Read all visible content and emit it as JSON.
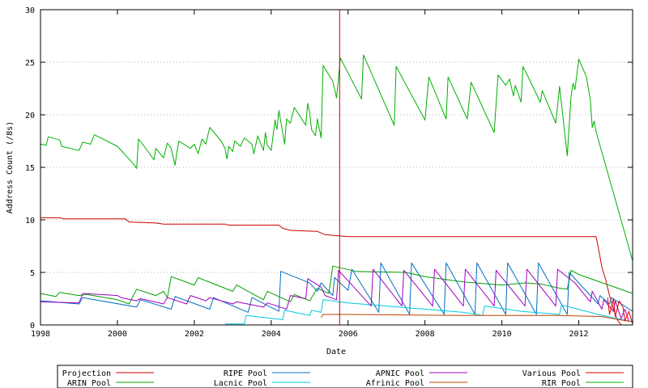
{
  "chart_data": {
    "type": "line",
    "xlabel": "Date",
    "ylabel": "Address Count (/8s)",
    "xlim": [
      1998,
      2013.4
    ],
    "ylim": [
      0,
      30
    ],
    "x_ticks": [
      "1998",
      "2000",
      "2002",
      "2004",
      "2006",
      "2008",
      "2010",
      "2012"
    ],
    "y_ticks": [
      "0",
      "5",
      "10",
      "15",
      "20",
      "25",
      "30"
    ],
    "grid": true,
    "legend_position": "bottom",
    "projection_marker_x": 2005.78,
    "series": [
      {
        "name": "Projection",
        "color": "#cc0000",
        "points": [
          [
            1998,
            10.2
          ],
          [
            1998.5,
            10.2
          ],
          [
            1998.6,
            10.1
          ],
          [
            2000.2,
            10.1
          ],
          [
            2000.3,
            9.8
          ],
          [
            2001.0,
            9.7
          ],
          [
            2001.2,
            9.6
          ],
          [
            2002.8,
            9.6
          ],
          [
            2002.9,
            9.5
          ],
          [
            2004.2,
            9.5
          ],
          [
            2004.3,
            9.2
          ],
          [
            2004.5,
            9.0
          ],
          [
            2005.2,
            8.9
          ],
          [
            2005.4,
            8.6
          ],
          [
            2005.7,
            8.5
          ],
          [
            2006.0,
            8.4
          ],
          [
            2012.45,
            8.4
          ],
          [
            2012.5,
            7.5
          ],
          [
            2012.55,
            6.5
          ],
          [
            2012.6,
            5.5
          ],
          [
            2012.7,
            4.3
          ],
          [
            2012.8,
            2.8
          ],
          [
            2012.9,
            1.5
          ],
          [
            2013.0,
            0.5
          ],
          [
            2013.1,
            0
          ]
        ]
      },
      {
        "name": "ARIN Pool",
        "color": "#00a000",
        "points": [
          [
            1998,
            3.0
          ],
          [
            1998.4,
            2.7
          ],
          [
            1998.5,
            3.1
          ],
          [
            1999.0,
            2.8
          ],
          [
            1999.2,
            2.9
          ],
          [
            2000.0,
            2.4
          ],
          [
            2000.3,
            2.0
          ],
          [
            2000.5,
            3.4
          ],
          [
            2001.0,
            2.8
          ],
          [
            2001.2,
            3.2
          ],
          [
            2001.3,
            2.6
          ],
          [
            2001.4,
            4.6
          ],
          [
            2002.0,
            3.8
          ],
          [
            2002.1,
            4.5
          ],
          [
            2003.0,
            3.2
          ],
          [
            2003.1,
            3.8
          ],
          [
            2003.8,
            2.4
          ],
          [
            2003.9,
            3.2
          ],
          [
            2004.5,
            2.2
          ],
          [
            2004.6,
            2.9
          ],
          [
            2005.0,
            2.3
          ],
          [
            2005.2,
            3.5
          ],
          [
            2005.5,
            3.0
          ],
          [
            2005.6,
            5.6
          ],
          [
            2006.2,
            5.1
          ],
          [
            2007.5,
            5.0
          ],
          [
            2008.0,
            4.6
          ],
          [
            2009.0,
            4.1
          ],
          [
            2010.0,
            3.8
          ],
          [
            2010.6,
            4.0
          ],
          [
            2011.0,
            3.9
          ],
          [
            2011.5,
            3.5
          ],
          [
            2011.7,
            3.4
          ],
          [
            2011.8,
            5.2
          ],
          [
            2012.0,
            4.8
          ],
          [
            2013.4,
            3.0
          ]
        ]
      },
      {
        "name": "RIPE Pool",
        "color": "#0070c0",
        "points": [
          [
            1998,
            2.3
          ],
          [
            1999.0,
            2.0
          ],
          [
            1999.1,
            2.6
          ],
          [
            2000.5,
            1.7
          ],
          [
            2000.6,
            2.4
          ],
          [
            2001.4,
            1.5
          ],
          [
            2001.5,
            2.7
          ],
          [
            2002.4,
            1.5
          ],
          [
            2002.5,
            2.6
          ],
          [
            2003.4,
            1.2
          ],
          [
            2003.5,
            2.6
          ],
          [
            2004.2,
            1.3
          ],
          [
            2004.25,
            5.1
          ],
          [
            2005.0,
            4.0
          ],
          [
            2005.2,
            3.2
          ],
          [
            2005.3,
            4.0
          ],
          [
            2005.6,
            2.8
          ],
          [
            2005.65,
            4.5
          ],
          [
            2006.0,
            3.3
          ],
          [
            2006.1,
            5.3
          ],
          [
            2006.8,
            1.2
          ],
          [
            2006.85,
            5.9
          ],
          [
            2007.6,
            1.0
          ],
          [
            2007.65,
            5.9
          ],
          [
            2008.5,
            1.0
          ],
          [
            2008.55,
            5.9
          ],
          [
            2009.3,
            1.0
          ],
          [
            2009.35,
            5.9
          ],
          [
            2010.1,
            1.0
          ],
          [
            2010.15,
            5.9
          ],
          [
            2010.9,
            1.0
          ],
          [
            2010.95,
            5.9
          ],
          [
            2011.7,
            1.0
          ],
          [
            2011.75,
            5.0
          ],
          [
            2012.5,
            2.0
          ],
          [
            2012.55,
            2.8
          ],
          [
            2012.8,
            2.0
          ],
          [
            2012.85,
            2.6
          ],
          [
            2013.4,
            1.3
          ]
        ]
      },
      {
        "name": "Lacnic Pool",
        "color": "#00c8e0",
        "points": [
          [
            2002.8,
            0.1
          ],
          [
            2003.3,
            0.1
          ],
          [
            2003.35,
            0.9
          ],
          [
            2004.3,
            0.5
          ],
          [
            2004.35,
            1.4
          ],
          [
            2005.0,
            0.9
          ],
          [
            2005.05,
            1.4
          ],
          [
            2005.3,
            1.2
          ],
          [
            2005.35,
            2.4
          ],
          [
            2006.0,
            2.1
          ],
          [
            2007.0,
            1.8
          ],
          [
            2008.0,
            1.5
          ],
          [
            2009.0,
            1.2
          ],
          [
            2009.5,
            0.9
          ],
          [
            2009.55,
            1.8
          ],
          [
            2010.5,
            1.3
          ],
          [
            2011.5,
            1.0
          ],
          [
            2011.55,
            1.9
          ],
          [
            2012.3,
            1.2
          ],
          [
            2012.5,
            1.0
          ],
          [
            2013.4,
            0.3
          ]
        ]
      },
      {
        "name": "APNIC Pool",
        "color": "#a000c0",
        "points": [
          [
            1998,
            2.2
          ],
          [
            1999.0,
            2.1
          ],
          [
            1999.1,
            3.0
          ],
          [
            2000.0,
            2.8
          ],
          [
            2000.1,
            2.6
          ],
          [
            2000.5,
            2.3
          ],
          [
            2000.6,
            2.5
          ],
          [
            2001.2,
            2.0
          ],
          [
            2001.3,
            2.6
          ],
          [
            2001.8,
            2.0
          ],
          [
            2001.9,
            2.8
          ],
          [
            2002.3,
            2.3
          ],
          [
            2002.4,
            2.6
          ],
          [
            2003.0,
            2.0
          ],
          [
            2003.1,
            2.2
          ],
          [
            2003.8,
            1.7
          ],
          [
            2003.9,
            2.1
          ],
          [
            2004.4,
            1.5
          ],
          [
            2004.5,
            2.8
          ],
          [
            2004.9,
            2.5
          ],
          [
            2004.95,
            4.4
          ],
          [
            2005.3,
            3.6
          ],
          [
            2005.4,
            2.8
          ],
          [
            2005.7,
            2.4
          ],
          [
            2005.75,
            5.2
          ],
          [
            2006.6,
            1.8
          ],
          [
            2006.65,
            5.3
          ],
          [
            2007.4,
            1.8
          ],
          [
            2007.45,
            5.2
          ],
          [
            2008.2,
            1.8
          ],
          [
            2008.25,
            5.3
          ],
          [
            2009.0,
            1.8
          ],
          [
            2009.05,
            5.3
          ],
          [
            2009.8,
            1.8
          ],
          [
            2009.85,
            5.2
          ],
          [
            2010.6,
            1.8
          ],
          [
            2010.65,
            5.3
          ],
          [
            2011.4,
            1.8
          ],
          [
            2011.45,
            5.3
          ],
          [
            2011.9,
            4.0
          ],
          [
            2012.3,
            2.2
          ],
          [
            2012.35,
            3.2
          ],
          [
            2012.6,
            1.5
          ],
          [
            2012.65,
            2.4
          ],
          [
            2012.9,
            1.3
          ],
          [
            2012.95,
            2.3
          ],
          [
            2013.1,
            0.6
          ],
          [
            2013.2,
            1.5
          ],
          [
            2013.3,
            0.4
          ]
        ]
      },
      {
        "name": "Afrinic Pool",
        "color": "#c04000",
        "points": [
          [
            2005.3,
            0.7
          ],
          [
            2005.35,
            1.0
          ],
          [
            2006.0,
            1.0
          ],
          [
            2009.0,
            0.9
          ],
          [
            2011.5,
            0.9
          ],
          [
            2012.6,
            0.8
          ],
          [
            2012.9,
            0.6
          ],
          [
            2013.4,
            0.3
          ]
        ]
      },
      {
        "name": "Various Pool",
        "color": "#e00000",
        "points": [
          [
            2012.75,
            2.6
          ],
          [
            2012.8,
            1.0
          ],
          [
            2012.9,
            2.5
          ],
          [
            2012.95,
            0.8
          ],
          [
            2013.05,
            2.3
          ],
          [
            2013.15,
            1.7
          ],
          [
            2013.2,
            0.4
          ],
          [
            2013.3,
            1.3
          ],
          [
            2013.4,
            0.1
          ]
        ]
      },
      {
        "name": "RIR Pool",
        "color": "#00b000",
        "points": [
          [
            1998,
            17.2
          ],
          [
            1998.15,
            17.1
          ],
          [
            1998.2,
            17.9
          ],
          [
            1998.5,
            17.6
          ],
          [
            1998.55,
            17.0
          ],
          [
            1999.0,
            16.6
          ],
          [
            1999.1,
            17.4
          ],
          [
            1999.3,
            17.2
          ],
          [
            1999.4,
            18.1
          ],
          [
            2000.0,
            17.0
          ],
          [
            2000.4,
            15.4
          ],
          [
            2000.5,
            14.9
          ],
          [
            2000.55,
            17.7
          ],
          [
            2000.8,
            16.5
          ],
          [
            2000.95,
            15.7
          ],
          [
            2001.0,
            16.8
          ],
          [
            2001.2,
            15.9
          ],
          [
            2001.3,
            17.3
          ],
          [
            2001.4,
            16.8
          ],
          [
            2001.5,
            15.2
          ],
          [
            2001.55,
            16.5
          ],
          [
            2001.6,
            17.5
          ],
          [
            2001.9,
            16.8
          ],
          [
            2002.0,
            17.2
          ],
          [
            2002.1,
            16.3
          ],
          [
            2002.2,
            17.7
          ],
          [
            2002.3,
            17.2
          ],
          [
            2002.4,
            18.8
          ],
          [
            2002.7,
            17.5
          ],
          [
            2002.8,
            16.8
          ],
          [
            2002.85,
            15.8
          ],
          [
            2002.9,
            17.0
          ],
          [
            2003.0,
            16.5
          ],
          [
            2003.05,
            17.5
          ],
          [
            2003.2,
            17.0
          ],
          [
            2003.3,
            17.8
          ],
          [
            2003.5,
            17.2
          ],
          [
            2003.55,
            16.3
          ],
          [
            2003.65,
            18.0
          ],
          [
            2003.8,
            16.6
          ],
          [
            2003.85,
            18.3
          ],
          [
            2003.9,
            17.1
          ],
          [
            2004.0,
            16.6
          ],
          [
            2004.1,
            19.5
          ],
          [
            2004.15,
            18.6
          ],
          [
            2004.2,
            20.4
          ],
          [
            2004.35,
            17.2
          ],
          [
            2004.4,
            19.6
          ],
          [
            2004.5,
            19.2
          ],
          [
            2004.6,
            20.7
          ],
          [
            2004.9,
            19.0
          ],
          [
            2004.95,
            21.1
          ],
          [
            2005.0,
            20.2
          ],
          [
            2005.05,
            18.6
          ],
          [
            2005.15,
            18.0
          ],
          [
            2005.2,
            19.6
          ],
          [
            2005.3,
            17.8
          ],
          [
            2005.35,
            24.7
          ],
          [
            2005.6,
            23.2
          ],
          [
            2005.7,
            21.6
          ],
          [
            2005.8,
            25.4
          ],
          [
            2006.35,
            21.5
          ],
          [
            2006.4,
            25.7
          ],
          [
            2007.2,
            19.0
          ],
          [
            2007.25,
            24.6
          ],
          [
            2008.0,
            19.5
          ],
          [
            2008.1,
            23.6
          ],
          [
            2008.55,
            19.6
          ],
          [
            2008.6,
            23.6
          ],
          [
            2009.1,
            19.6
          ],
          [
            2009.2,
            23.1
          ],
          [
            2009.8,
            18.3
          ],
          [
            2009.9,
            23.8
          ],
          [
            2010.1,
            22.8
          ],
          [
            2010.2,
            23.4
          ],
          [
            2010.3,
            21.8
          ],
          [
            2010.35,
            22.8
          ],
          [
            2010.5,
            21.2
          ],
          [
            2010.55,
            24.6
          ],
          [
            2011.0,
            21.2
          ],
          [
            2011.05,
            22.3
          ],
          [
            2011.4,
            19.2
          ],
          [
            2011.5,
            22.7
          ],
          [
            2011.7,
            16.1
          ],
          [
            2011.8,
            21.8
          ],
          [
            2011.85,
            23.0
          ],
          [
            2011.9,
            22.4
          ],
          [
            2012.0,
            25.3
          ],
          [
            2012.2,
            23.6
          ],
          [
            2012.3,
            21.4
          ],
          [
            2012.35,
            18.8
          ],
          [
            2012.4,
            19.4
          ],
          [
            2012.45,
            18.4
          ],
          [
            2013.4,
            6.1
          ]
        ]
      }
    ]
  }
}
